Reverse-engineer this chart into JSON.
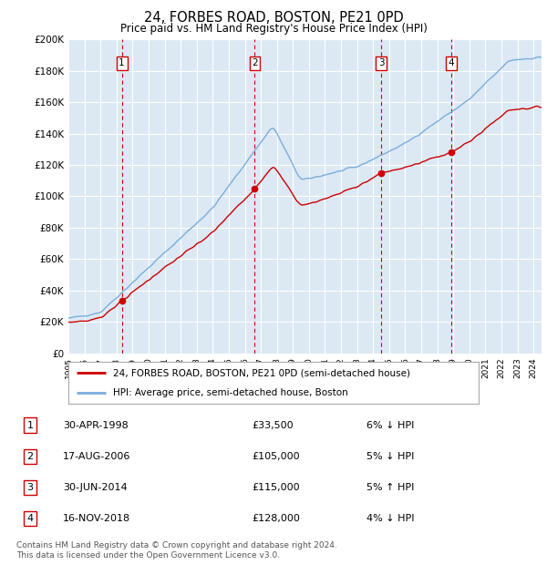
{
  "title": "24, FORBES ROAD, BOSTON, PE21 0PD",
  "subtitle": "Price paid vs. HM Land Registry's House Price Index (HPI)",
  "ylim": [
    0,
    200000
  ],
  "yticks": [
    0,
    20000,
    40000,
    60000,
    80000,
    100000,
    120000,
    140000,
    160000,
    180000,
    200000
  ],
  "background_color": "#ffffff",
  "plot_bg_color": "#dce9f5",
  "grid_color": "#ffffff",
  "hpi_color": "#7aaddb",
  "price_color": "#cc0000",
  "vline_color": "#cc0000",
  "transactions": [
    {
      "price": 33500,
      "label": "1",
      "x": 1998.33
    },
    {
      "price": 105000,
      "label": "2",
      "x": 2006.62
    },
    {
      "price": 115000,
      "label": "3",
      "x": 2014.5
    },
    {
      "price": 128000,
      "label": "4",
      "x": 2018.87
    }
  ],
  "legend_entries": [
    {
      "label": "24, FORBES ROAD, BOSTON, PE21 0PD (semi-detached house)",
      "color": "#cc0000"
    },
    {
      "label": "HPI: Average price, semi-detached house, Boston",
      "color": "#7aaddb"
    }
  ],
  "table_rows": [
    {
      "num": "1",
      "date": "30-APR-1998",
      "price": "£33,500",
      "hpi": "6% ↓ HPI"
    },
    {
      "num": "2",
      "date": "17-AUG-2006",
      "price": "£105,000",
      "hpi": "5% ↓ HPI"
    },
    {
      "num": "3",
      "date": "30-JUN-2014",
      "price": "£115,000",
      "hpi": "5% ↑ HPI"
    },
    {
      "num": "4",
      "date": "16-NOV-2018",
      "price": "£128,000",
      "hpi": "4% ↓ HPI"
    }
  ],
  "footnote": "Contains HM Land Registry data © Crown copyright and database right 2024.\nThis data is licensed under the Open Government Licence v3.0.",
  "xmin": 1995.0,
  "xmax": 2024.5
}
